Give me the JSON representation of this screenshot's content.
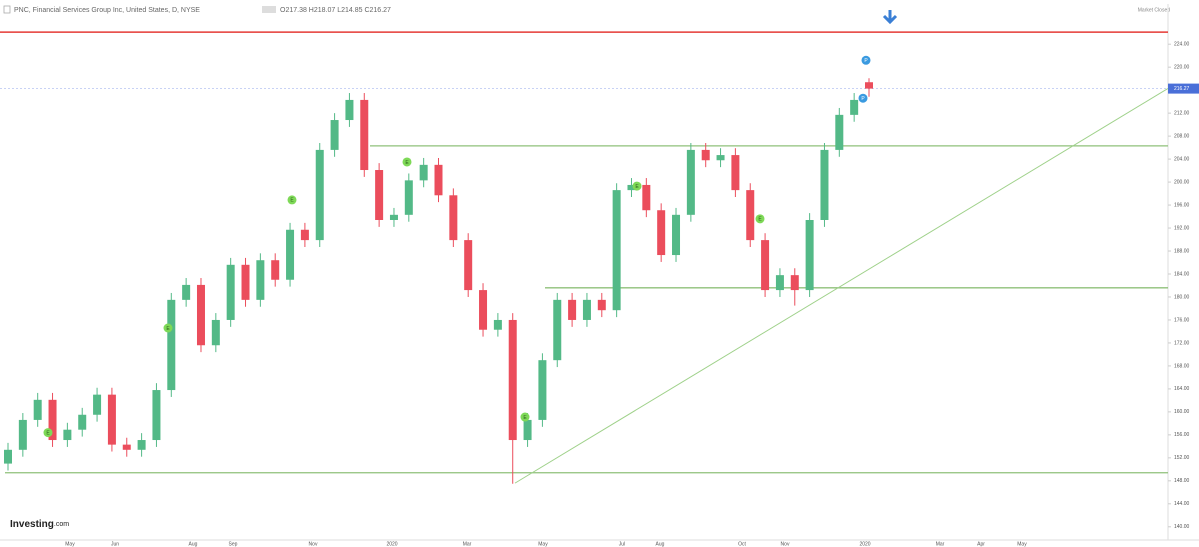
{
  "chart_data": {
    "type": "candlestick",
    "title": "PNC, Financial Services Group Inc, United States, D, NYSE",
    "ohlc_text": "O217.38 H218.07 L214.85 C216.27",
    "status": "Market Closed",
    "brand": "Investing",
    "brand_suffix": ".com",
    "open": [
      151.0,
      153.4,
      158.6,
      162.1,
      155.1,
      156.9,
      159.5,
      163.0,
      154.3,
      153.4,
      155.1,
      163.8,
      179.5,
      182.1,
      171.6,
      176.0,
      185.6,
      179.5,
      186.4,
      183.0,
      191.7,
      189.9,
      205.6,
      210.8,
      214.3,
      202.1,
      193.4,
      194.3,
      200.3,
      203.0,
      197.7,
      189.9,
      181.2,
      174.3,
      176.0,
      155.1,
      158.6,
      169.0,
      179.5,
      176.0,
      179.5,
      177.7,
      198.6,
      199.5,
      195.1,
      187.3,
      194.3,
      205.6,
      203.8,
      204.7,
      198.6,
      189.9,
      181.2,
      183.8,
      181.2,
      193.4,
      205.6,
      211.7,
      217.38
    ],
    "high": [
      154.6,
      159.8,
      163.3,
      163.3,
      158.1,
      160.7,
      164.2,
      164.2,
      155.5,
      156.3,
      165.0,
      180.7,
      183.3,
      183.3,
      177.2,
      186.8,
      186.8,
      187.6,
      187.6,
      192.9,
      192.9,
      206.8,
      212.0,
      215.5,
      215.5,
      203.3,
      195.5,
      201.5,
      204.2,
      204.2,
      198.9,
      191.1,
      182.4,
      177.2,
      177.2,
      159.8,
      170.2,
      180.7,
      180.7,
      180.7,
      180.7,
      199.8,
      200.7,
      200.7,
      196.3,
      195.5,
      206.8,
      206.8,
      205.9,
      205.9,
      199.8,
      191.1,
      185.0,
      185.0,
      194.6,
      206.8,
      212.9,
      215.5,
      218.07
    ],
    "low": [
      149.8,
      152.2,
      157.4,
      153.9,
      153.9,
      155.7,
      158.3,
      153.1,
      152.2,
      152.2,
      153.9,
      162.6,
      178.3,
      170.4,
      170.4,
      174.8,
      178.3,
      178.3,
      181.8,
      181.8,
      188.7,
      188.7,
      204.4,
      209.6,
      200.9,
      192.2,
      192.2,
      193.1,
      199.1,
      196.5,
      188.7,
      180.0,
      173.1,
      173.1,
      147.5,
      153.9,
      157.4,
      167.8,
      174.8,
      174.8,
      176.5,
      176.5,
      197.4,
      193.9,
      186.1,
      186.1,
      193.1,
      202.6,
      202.6,
      197.4,
      188.7,
      180.0,
      180.0,
      178.5,
      180.0,
      192.2,
      204.4,
      210.5,
      214.85
    ],
    "close": [
      153.4,
      158.6,
      162.1,
      155.1,
      156.9,
      159.5,
      163.0,
      154.3,
      153.4,
      155.1,
      163.8,
      179.5,
      182.1,
      171.6,
      176.0,
      185.6,
      179.5,
      186.4,
      183.0,
      191.7,
      189.9,
      205.6,
      210.8,
      214.3,
      202.1,
      193.4,
      194.3,
      200.3,
      203.0,
      197.7,
      189.9,
      181.2,
      174.3,
      176.0,
      155.1,
      158.6,
      169.0,
      179.5,
      176.0,
      179.5,
      177.7,
      198.6,
      199.5,
      195.1,
      187.3,
      194.3,
      205.6,
      203.8,
      204.7,
      198.6,
      189.9,
      181.2,
      183.8,
      181.2,
      193.4,
      205.6,
      211.7,
      214.3,
      216.27
    ],
    "up_color": "#53b987",
    "down_color": "#eb4d5c",
    "last_price": 216.27,
    "x_labels": [
      "May",
      "Jun",
      "Aug",
      "Sep",
      "Nov",
      "2020",
      "Mar",
      "May",
      "Jul",
      "Aug",
      "Oct",
      "Nov",
      "2020",
      "Mar",
      "Apr",
      "May"
    ],
    "ylim": [
      137.7,
      230.3
    ],
    "yticks": [
      {
        "value": 140,
        "label": "140.00"
      },
      {
        "value": 144,
        "label": "144.00"
      },
      {
        "value": 148,
        "label": "148.00"
      },
      {
        "value": 152,
        "label": "152.00"
      },
      {
        "value": 156,
        "label": "156.00"
      },
      {
        "value": 160,
        "label": "160.00"
      },
      {
        "value": 164,
        "label": "164.00"
      },
      {
        "value": 168,
        "label": "168.00"
      },
      {
        "value": 172,
        "label": "172.00"
      },
      {
        "value": 176,
        "label": "176.00"
      },
      {
        "value": 180,
        "label": "180.00"
      },
      {
        "value": 184,
        "label": "184.00"
      },
      {
        "value": 188,
        "label": "188.00"
      },
      {
        "value": 192,
        "label": "192.00"
      },
      {
        "value": 196,
        "label": "196.00"
      },
      {
        "value": 200,
        "label": "200.00"
      },
      {
        "value": 204,
        "label": "204.00"
      },
      {
        "value": 208,
        "label": "208.00"
      },
      {
        "value": 212,
        "label": "212.00"
      },
      {
        "value": 220,
        "label": "220.00"
      },
      {
        "value": 224,
        "label": "224.00"
      }
    ],
    "levels": [
      {
        "value": 226.1,
        "color": "#e53935"
      },
      {
        "value": 206.3,
        "color": "#8fc17a"
      },
      {
        "value": 181.6,
        "color": "#8fc17a"
      },
      {
        "value": 149.4,
        "color": "#8fc17a"
      }
    ],
    "trendline": {
      "values": [
        147.6,
        216.3
      ],
      "color": "#9fd18a"
    },
    "events": [
      {
        "label": "E",
        "price": 156.4
      },
      {
        "label": "E",
        "price": 174.6
      },
      {
        "label": "E",
        "price": 196.9
      },
      {
        "label": "E",
        "price": 203.5
      },
      {
        "label": "E",
        "price": 159.1
      },
      {
        "label": "E",
        "price": 199.3
      },
      {
        "label": "E",
        "price": 193.6
      },
      {
        "label": "P",
        "price": 221.2
      },
      {
        "label": "P",
        "price": 214.6
      }
    ]
  }
}
